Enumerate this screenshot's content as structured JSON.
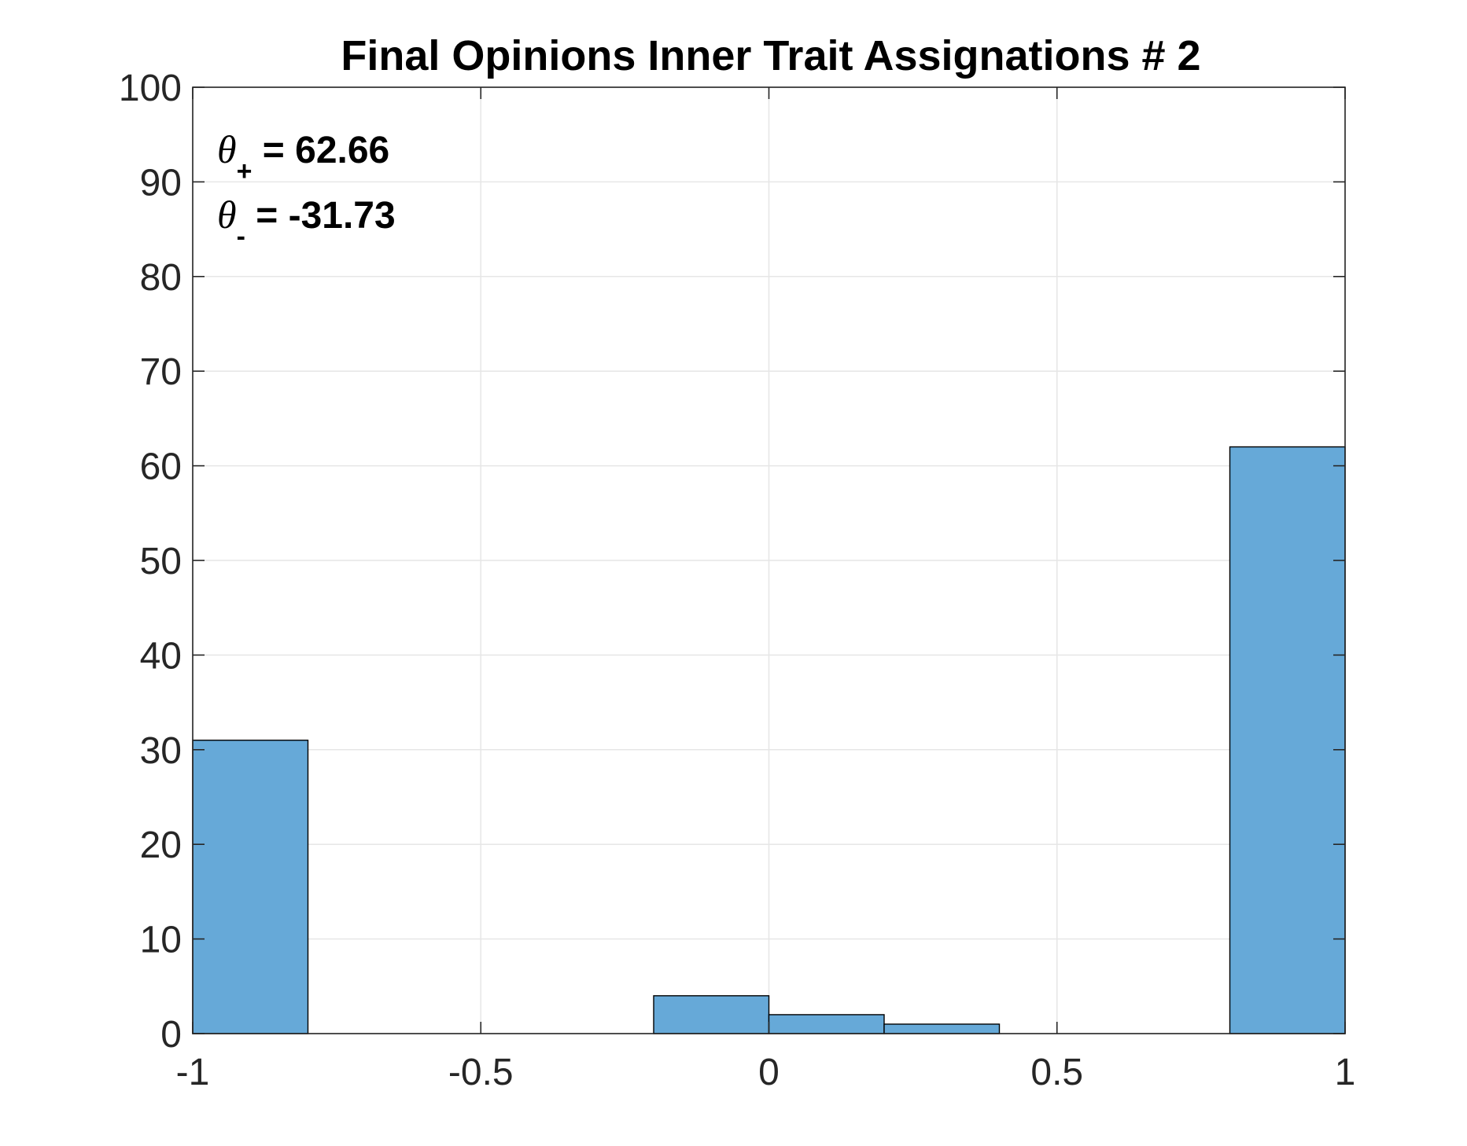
{
  "chart_data": {
    "type": "bar",
    "title": "Final Opinions Inner Trait Assignations # 2",
    "xlabel": "",
    "ylabel": "",
    "xlim": [
      -1,
      1
    ],
    "ylim": [
      0,
      100
    ],
    "xticks": [
      "-1",
      "-0.5",
      "0",
      "0.5",
      "1"
    ],
    "yticks": [
      "0",
      "10",
      "20",
      "30",
      "40",
      "50",
      "60",
      "70",
      "80",
      "90",
      "100"
    ],
    "grid": true,
    "bins": [
      {
        "x0": -1.0,
        "x1": -0.8,
        "value": 31
      },
      {
        "x0": -0.8,
        "x1": -0.6,
        "value": 0
      },
      {
        "x0": -0.6,
        "x1": -0.4,
        "value": 0
      },
      {
        "x0": -0.4,
        "x1": -0.2,
        "value": 0
      },
      {
        "x0": -0.2,
        "x1": 0.0,
        "value": 4
      },
      {
        "x0": 0.0,
        "x1": 0.2,
        "value": 2
      },
      {
        "x0": 0.2,
        "x1": 0.4,
        "value": 1
      },
      {
        "x0": 0.4,
        "x1": 0.6,
        "value": 0
      },
      {
        "x0": 0.6,
        "x1": 0.8,
        "value": 0
      },
      {
        "x0": 0.8,
        "x1": 1.0,
        "value": 62
      }
    ],
    "colors": {
      "bar": "#66A9D8",
      "edge": "#000000",
      "grid": "#E6E6E6",
      "axis": "#262626"
    },
    "annotations": [
      {
        "symbol": "θ",
        "subscript": "+",
        "text": " = 62.66"
      },
      {
        "symbol": "θ",
        "subscript": "-",
        "text": " = -31.73"
      }
    ],
    "annotation_placement": "top-left"
  }
}
